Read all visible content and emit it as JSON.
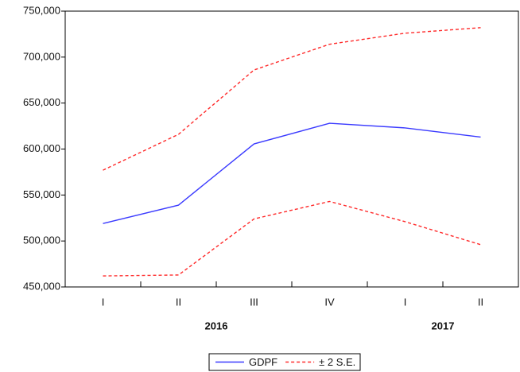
{
  "chart_data": {
    "type": "line",
    "categories": [
      "I",
      "II",
      "III",
      "IV",
      "I",
      "II"
    ],
    "x_groups": [
      {
        "label": "2016",
        "span": 4
      },
      {
        "label": "2017",
        "span": 2
      }
    ],
    "series": [
      {
        "name": "GDPF",
        "color": "#3a3aff",
        "values": [
          519000,
          539000,
          605600,
          628000,
          623000,
          613000
        ]
      },
      {
        "name": "± 2 S.E.",
        "color": "#ff2a2a",
        "dashed": true,
        "values": [
          577000,
          616000,
          686000,
          714000,
          726000,
          732000
        ],
        "lower": [
          462000,
          463000,
          524000,
          543000,
          521000,
          496000
        ]
      }
    ],
    "ylim": [
      450000,
      750000
    ],
    "yticks": [
      {
        "value": 450000,
        "label": "450,000"
      },
      {
        "value": 500000,
        "label": "500,000"
      },
      {
        "value": 550000,
        "label": "550,000"
      },
      {
        "value": 600000,
        "label": "600,000"
      },
      {
        "value": 650000,
        "label": "650,000"
      },
      {
        "value": 700000,
        "label": "700,000"
      },
      {
        "value": 750000,
        "label": "750,000"
      }
    ],
    "grid": false,
    "legend": "bottom"
  }
}
